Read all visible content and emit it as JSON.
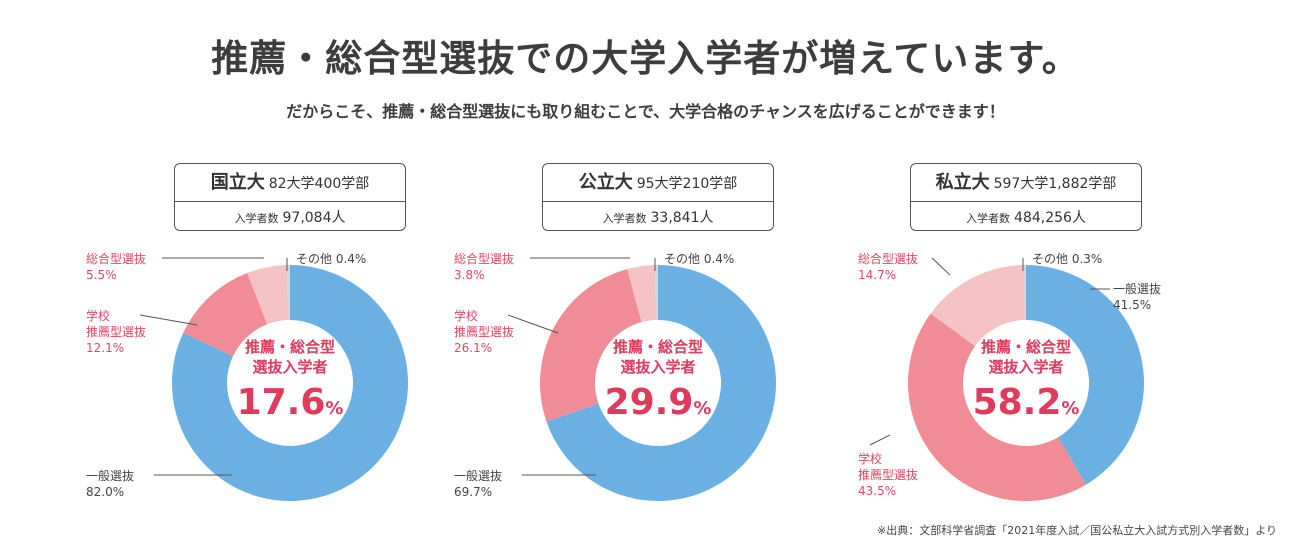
{
  "title": "推薦・総合型選抜での大学入学者が増えています。",
  "subtitle": "だからこそ、推薦・総合型選抜にも取り組むことで、大学合格のチャンスを広げることができます！",
  "source": "※出典：文部科学省調査「2021年度入試／国公私立大入試方式別入学者数」より",
  "center_label_line1": "推薦・総合型",
  "center_label_line2": "選抜入学者",
  "colors": {
    "general": "#6bb0e3",
    "school": "#f08c95",
    "comprehensive": "#f6c3c4",
    "other": "#d3d6da",
    "accent": "#e03b5c"
  },
  "chart_data": [
    {
      "type": "pie",
      "name": "国立大",
      "universities": "82大学400学部",
      "enrollment_label": "入学者数",
      "enrollment": "97,084人",
      "center_value": "17.6",
      "center_unit": "%",
      "slices": [
        {
          "key": "general",
          "label": "一般選抜",
          "value": 82.0,
          "value_text": "82.0%"
        },
        {
          "key": "school",
          "label": "学校\n推薦型選抜",
          "value": 12.1,
          "value_text": "12.1%"
        },
        {
          "key": "comprehensive",
          "label": "総合型選抜",
          "value": 5.5,
          "value_text": "5.5%"
        },
        {
          "key": "other",
          "label": "その他",
          "value": 0.4,
          "value_text": "0.4%"
        }
      ]
    },
    {
      "type": "pie",
      "name": "公立大",
      "universities": "95大学210学部",
      "enrollment_label": "入学者数",
      "enrollment": "33,841人",
      "center_value": "29.9",
      "center_unit": "%",
      "slices": [
        {
          "key": "general",
          "label": "一般選抜",
          "value": 69.7,
          "value_text": "69.7%"
        },
        {
          "key": "school",
          "label": "学校\n推薦型選抜",
          "value": 26.1,
          "value_text": "26.1%"
        },
        {
          "key": "comprehensive",
          "label": "総合型選抜",
          "value": 3.8,
          "value_text": "3.8%"
        },
        {
          "key": "other",
          "label": "その他",
          "value": 0.4,
          "value_text": "0.4%"
        }
      ]
    },
    {
      "type": "pie",
      "name": "私立大",
      "universities": "597大学1,882学部",
      "enrollment_label": "入学者数",
      "enrollment": "484,256人",
      "center_value": "58.2",
      "center_unit": "%",
      "slices": [
        {
          "key": "general",
          "label": "一般選抜",
          "value": 41.5,
          "value_text": "41.5%"
        },
        {
          "key": "school",
          "label": "学校\n推薦型選抜",
          "value": 43.5,
          "value_text": "43.5%"
        },
        {
          "key": "comprehensive",
          "label": "総合型選抜",
          "value": 14.7,
          "value_text": "14.7%"
        },
        {
          "key": "other",
          "label": "その他",
          "value": 0.3,
          "value_text": "0.3%"
        }
      ]
    }
  ]
}
